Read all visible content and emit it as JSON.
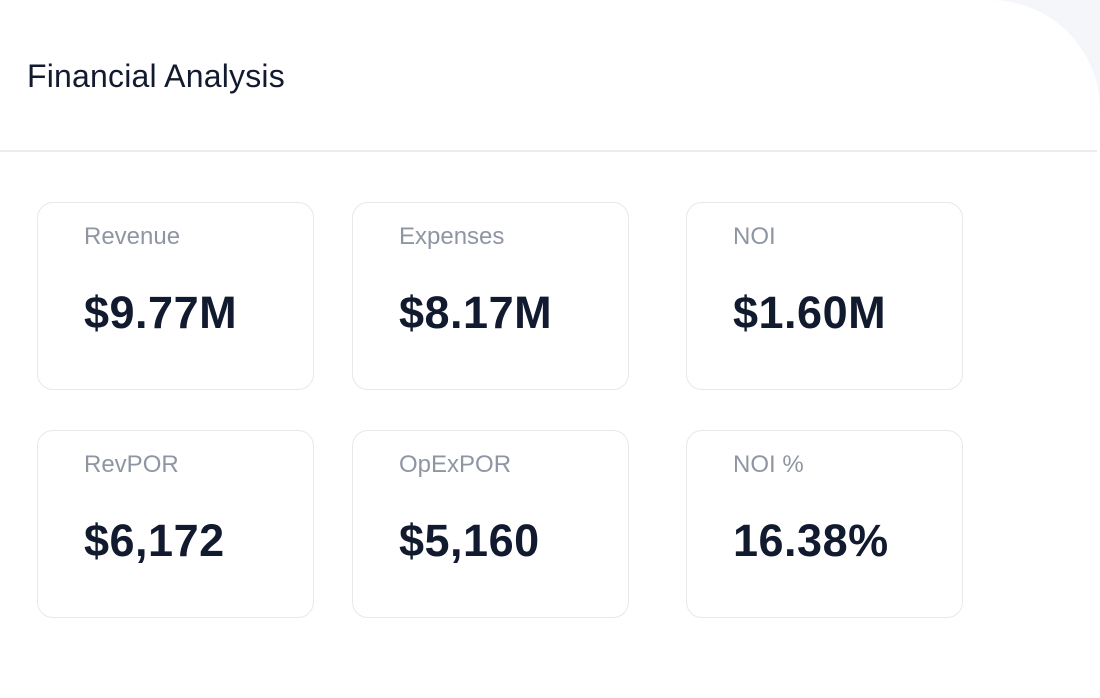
{
  "header": {
    "title": "Financial Analysis"
  },
  "metrics": [
    {
      "label": "Revenue",
      "value": "$9.77M"
    },
    {
      "label": "Expenses",
      "value": "$8.17M"
    },
    {
      "label": "NOI",
      "value": "$1.60M"
    },
    {
      "label": "RevPOR",
      "value": "$6,172"
    },
    {
      "label": "OpExPOR",
      "value": "$5,160"
    },
    {
      "label": "NOI %",
      "value": "16.38%"
    }
  ]
}
